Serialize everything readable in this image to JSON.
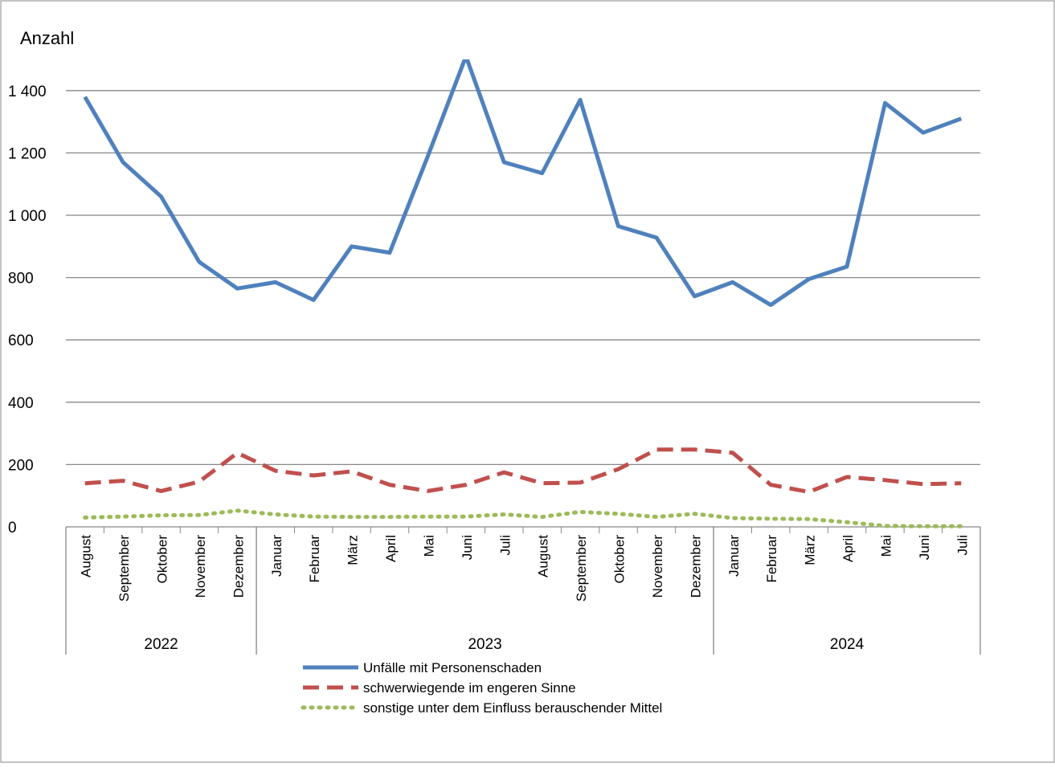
{
  "chart_data": {
    "type": "line",
    "ylabel": "Anzahl",
    "ylim": [
      0,
      1500
    ],
    "yticks": [
      0,
      200,
      400,
      600,
      800,
      1000,
      1200,
      1400
    ],
    "ytick_labels": [
      "0",
      "200",
      "400",
      "600",
      "800",
      "1 000",
      "1 200",
      "1 400"
    ],
    "grid": true,
    "legend_position": "bottom",
    "categories": [
      "August",
      "September",
      "Oktober",
      "November",
      "Dezember",
      "Januar",
      "Februar",
      "März",
      "April",
      "Mai",
      "Juni",
      "Juli",
      "August",
      "September",
      "Oktober",
      "November",
      "Dezember",
      "Januar",
      "Februar",
      "März",
      "April",
      "Mai",
      "Juni",
      "Juli"
    ],
    "year_groups": [
      {
        "label": "2022",
        "start": 0,
        "end": 4
      },
      {
        "label": "2023",
        "start": 5,
        "end": 16
      },
      {
        "label": "2024",
        "start": 17,
        "end": 23
      }
    ],
    "series": [
      {
        "name": "Unfälle mit Personenschaden",
        "color": "#4f81bd",
        "style": "solid",
        "values": [
          1380,
          1170,
          1060,
          850,
          765,
          785,
          728,
          900,
          880,
          1190,
          1510,
          1170,
          1135,
          1370,
          965,
          928,
          740,
          785,
          712,
          795,
          835,
          1360,
          1265,
          1310
        ]
      },
      {
        "name": "schwerwiegende im engeren Sinne",
        "color": "#c0504d",
        "style": "dashed",
        "values": [
          140,
          148,
          115,
          145,
          237,
          180,
          165,
          178,
          135,
          115,
          135,
          175,
          140,
          142,
          185,
          248,
          248,
          238,
          135,
          112,
          160,
          150,
          137,
          140
        ]
      },
      {
        "name": "sonstige unter dem Einfluss berauschender Mittel",
        "color": "#9bbb59",
        "style": "dotted",
        "values": [
          30,
          33,
          37,
          38,
          52,
          40,
          33,
          32,
          32,
          33,
          33,
          40,
          32,
          48,
          42,
          32,
          42,
          28,
          26,
          25,
          15,
          3,
          2,
          2
        ]
      }
    ]
  }
}
